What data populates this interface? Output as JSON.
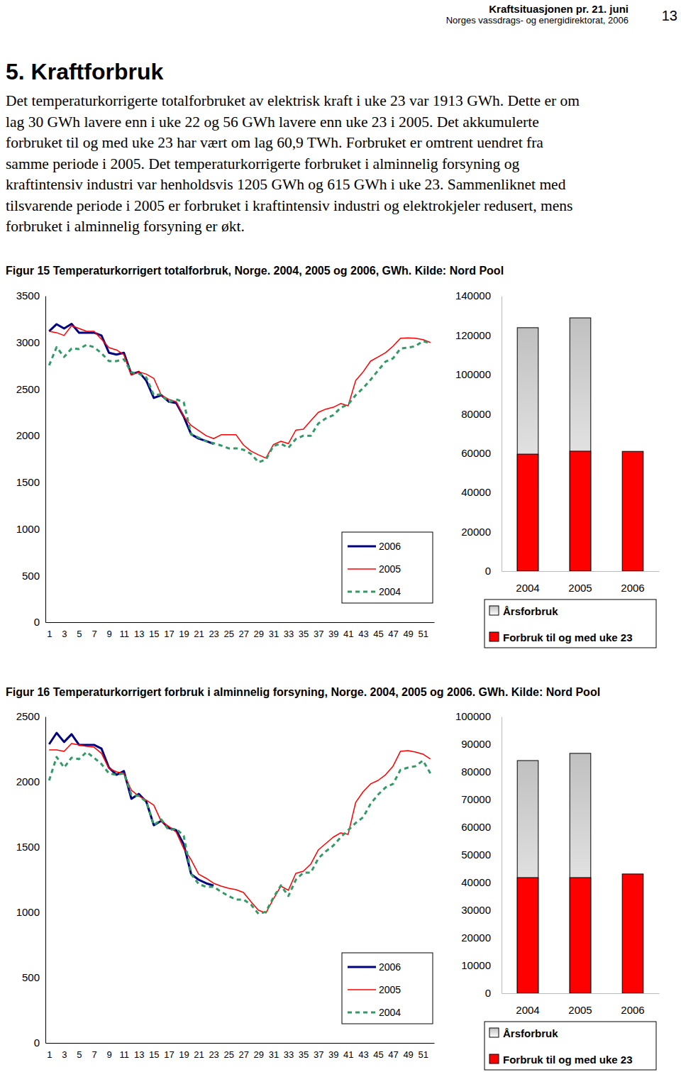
{
  "header": {
    "title": "Kraftsituasjonen pr. 21. juni",
    "publisher": "Norges vassdrags- og energidirektorat, 2006",
    "page": "13"
  },
  "heading": "5. Kraftforbruk",
  "paragraph": [
    "Det temperaturkorrigerte totalforbruket av elektrisk kraft i uke 23 var 1913 GWh. Dette er om",
    "lag 30 GWh lavere enn i uke 22 og 56 GWh lavere enn uke 23 i 2005. Det akkumulerte",
    "forbruket til og med uke 23 har vært om lag 60,9 TWh. Forbruket er omtrent uendret fra",
    "samme periode i 2005. Det temperaturkorrigerte forbruket i alminnelig forsyning og",
    "kraftintensiv industri var henholdsvis 1205 GWh og 615 GWh i uke 23. Sammenliknet med",
    "tilsvarende periode i 2005 er forbruket i kraftintensiv industri og elektrokjeler redusert, mens",
    "forbruket i alminnelig forsyning er økt."
  ],
  "figures": [
    "Figur 15 Temperaturkorrigert totalforbruk, Norge. 2004, 2005 og 2006, GWh. Kilde: Nord Pool",
    "Figur 16 Temperaturkorrigert forbruk i alminnelig forsyning, Norge. 2004, 2005 og 2006. GWh. Kilde: Nord Pool"
  ],
  "chart_data": [
    {
      "type": "line",
      "x": [
        1,
        2,
        3,
        4,
        5,
        6,
        7,
        8,
        9,
        10,
        11,
        12,
        13,
        14,
        15,
        16,
        17,
        18,
        19,
        20,
        21,
        22,
        23,
        24,
        25,
        26,
        27,
        28,
        29,
        30,
        31,
        32,
        33,
        34,
        35,
        36,
        37,
        38,
        39,
        40,
        41,
        42,
        43,
        44,
        45,
        46,
        47,
        48,
        49,
        50,
        51,
        52
      ],
      "xlim": [
        0.5,
        52.5
      ],
      "xticks": [
        1,
        3,
        5,
        7,
        9,
        11,
        13,
        15,
        17,
        19,
        21,
        23,
        25,
        27,
        29,
        31,
        33,
        35,
        37,
        39,
        41,
        43,
        45,
        47,
        49,
        51
      ],
      "ylim": [
        0,
        3500
      ],
      "yticks": [
        0,
        500,
        1000,
        1500,
        2000,
        2500,
        3000,
        3500
      ],
      "legend": "lower right",
      "series": [
        {
          "name": "2006",
          "color": "#000080",
          "line_style": "solid",
          "values": [
            3120,
            3196,
            3150,
            3200,
            3105,
            3105,
            3105,
            3075,
            2890,
            2870,
            2890,
            2660,
            2685,
            2590,
            2405,
            2435,
            2365,
            2350,
            2205,
            2015,
            1970,
            1943,
            1913,
            null,
            null,
            null,
            null,
            null,
            null,
            null,
            null,
            null,
            null,
            null,
            null,
            null,
            null,
            null,
            null,
            null,
            null,
            null,
            null,
            null,
            null,
            null,
            null,
            null,
            null,
            null,
            null,
            null
          ]
        },
        {
          "name": "2005",
          "color": "#ff0000",
          "line_style": "solid",
          "values": [
            3120,
            3105,
            3075,
            3180,
            3150,
            3120,
            3120,
            3035,
            2945,
            2920,
            2870,
            2650,
            2685,
            2660,
            2615,
            2435,
            2390,
            2365,
            2205,
            2110,
            2055,
            2000,
            1969,
            2010,
            2010,
            2010,
            1900,
            1835,
            1795,
            1760,
            1905,
            1940,
            1915,
            2060,
            2070,
            2160,
            2250,
            2285,
            2305,
            2345,
            2320,
            2590,
            2685,
            2800,
            2845,
            2890,
            2960,
            3045,
            3050,
            3045,
            3030,
            3000
          ]
        },
        {
          "name": "2004",
          "color": "#339966",
          "line_style": "dashed",
          "values": [
            2755,
            2950,
            2845,
            2935,
            2930,
            2975,
            2950,
            2885,
            2800,
            2800,
            2820,
            2680,
            2665,
            2625,
            2435,
            2445,
            2360,
            2390,
            2360,
            2015,
            1980,
            1940,
            1920,
            1895,
            1865,
            1865,
            1850,
            1805,
            1715,
            1745,
            1890,
            1915,
            1870,
            1965,
            2000,
            2000,
            2130,
            2185,
            2220,
            2300,
            2335,
            2435,
            2510,
            2600,
            2700,
            2795,
            2830,
            2935,
            2945,
            2960,
            3015,
            2990
          ]
        }
      ]
    },
    {
      "type": "bar",
      "categories": [
        "2004",
        "2005",
        "2006"
      ],
      "ylim": [
        0,
        140000
      ],
      "yticks": [
        0,
        20000,
        40000,
        60000,
        80000,
        100000,
        120000,
        140000
      ],
      "stacked": false,
      "legend": "bottom",
      "series": [
        {
          "name": "Årsforbruk",
          "color": "#c0c0c0",
          "values": [
            123800,
            128800,
            null
          ]
        },
        {
          "name": "Forbruk til og med uke 23",
          "color": "#ff0000",
          "values": [
            59500,
            61000,
            60900
          ]
        }
      ]
    },
    {
      "type": "line",
      "x": [
        1,
        2,
        3,
        4,
        5,
        6,
        7,
        8,
        9,
        10,
        11,
        12,
        13,
        14,
        15,
        16,
        17,
        18,
        19,
        20,
        21,
        22,
        23,
        24,
        25,
        26,
        27,
        28,
        29,
        30,
        31,
        32,
        33,
        34,
        35,
        36,
        37,
        38,
        39,
        40,
        41,
        42,
        43,
        44,
        45,
        46,
        47,
        48,
        49,
        50,
        51,
        52
      ],
      "xlim": [
        0.5,
        52.5
      ],
      "xticks": [
        1,
        3,
        5,
        7,
        9,
        11,
        13,
        15,
        17,
        19,
        21,
        23,
        25,
        27,
        29,
        31,
        33,
        35,
        37,
        39,
        41,
        43,
        45,
        47,
        49,
        51
      ],
      "ylim": [
        0,
        2500
      ],
      "yticks": [
        0,
        500,
        1000,
        1500,
        2000,
        2500
      ],
      "legend": "lower right",
      "series": [
        {
          "name": "2006",
          "color": "#000080",
          "line_style": "solid",
          "values": [
            2288,
            2375,
            2305,
            2365,
            2283,
            2283,
            2283,
            2255,
            2109,
            2054,
            2082,
            1870,
            1908,
            1848,
            1668,
            1701,
            1647,
            1630,
            1522,
            1293,
            1250,
            1223,
            1205,
            null,
            null,
            null,
            null,
            null,
            null,
            null,
            null,
            null,
            null,
            null,
            null,
            null,
            null,
            null,
            null,
            null,
            null,
            null,
            null,
            null,
            null,
            null,
            null,
            null,
            null,
            null,
            null,
            null
          ]
        },
        {
          "name": "2005",
          "color": "#ff0000",
          "line_style": "solid",
          "values": [
            2245,
            2245,
            2234,
            2294,
            2283,
            2272,
            2266,
            2218,
            2103,
            2076,
            2065,
            1935,
            1891,
            1859,
            1821,
            1696,
            1658,
            1614,
            1489,
            1402,
            1293,
            1261,
            1223,
            1201,
            1185,
            1174,
            1152,
            1082,
            1016,
            995,
            1103,
            1201,
            1169,
            1299,
            1315,
            1370,
            1478,
            1527,
            1576,
            1609,
            1598,
            1842,
            1924,
            1984,
            2011,
            2054,
            2120,
            2234,
            2239,
            2228,
            2212,
            2174
          ]
        },
        {
          "name": "2004",
          "color": "#339966",
          "line_style": "dashed",
          "values": [
            2011,
            2190,
            2109,
            2185,
            2174,
            2228,
            2185,
            2136,
            2065,
            2054,
            2065,
            1902,
            1891,
            1848,
            1668,
            1712,
            1630,
            1641,
            1587,
            1293,
            1217,
            1196,
            1196,
            1158,
            1125,
            1098,
            1098,
            1060,
            989,
            1005,
            1114,
            1207,
            1125,
            1250,
            1304,
            1304,
            1413,
            1467,
            1511,
            1576,
            1630,
            1685,
            1728,
            1832,
            1902,
            1957,
            1984,
            2092,
            2109,
            2120,
            2163,
            2065
          ]
        }
      ]
    },
    {
      "type": "bar",
      "categories": [
        "2004",
        "2005",
        "2006"
      ],
      "ylim": [
        0,
        100000
      ],
      "yticks": [
        0,
        10000,
        20000,
        30000,
        40000,
        50000,
        60000,
        70000,
        80000,
        90000,
        100000
      ],
      "stacked": false,
      "legend": "bottom",
      "series": [
        {
          "name": "Årsforbruk",
          "color": "#c0c0c0",
          "values": [
            84100,
            86700,
            null
          ]
        },
        {
          "name": "Forbruk til og med uke 23",
          "color": "#ff0000",
          "values": [
            41800,
            41800,
            43100
          ]
        }
      ]
    }
  ]
}
